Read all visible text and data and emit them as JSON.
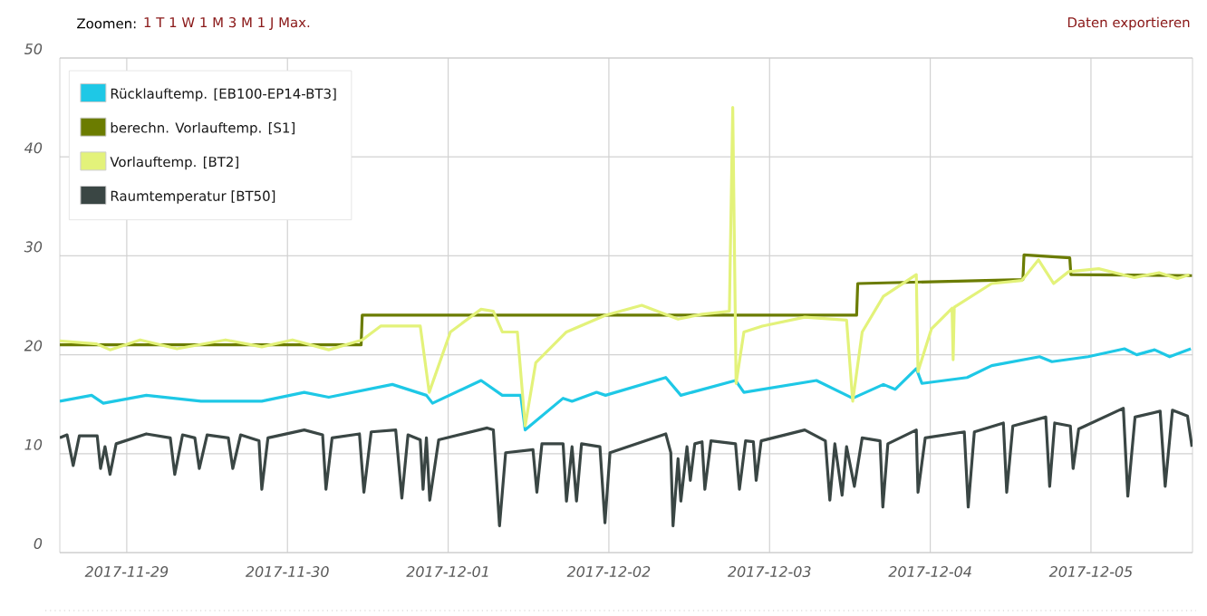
{
  "chart_data": {
    "type": "line",
    "annotations": [
      "Zoomen:",
      "1 T 1 W 1 M 3 M 1 J Max.",
      "Daten exportieren"
    ],
    "xlim": [
      "2017-11-28T14:00",
      "2017-12-05T15:10"
    ],
    "xticks": [
      "2017-11-29",
      "2017-11-30",
      "2017-12-01",
      "2017-12-02",
      "2017-12-03",
      "2017-12-04",
      "2017-12-05"
    ],
    "ylim": [
      0,
      50
    ],
    "yticks": [
      0,
      10,
      20,
      30,
      40,
      50
    ],
    "grid": true,
    "legend": "top left",
    "series": [
      {
        "name": "Rücklauftemp. [EB100-EP14-BT3]",
        "color": "#1ec8e6",
        "x": [
          "2017-11-28T14:00",
          "2017-11-28T18:45",
          "2017-11-28T20:30",
          "2017-11-29T02:55",
          "2017-11-29T11:05",
          "2017-11-29T20:10",
          "2017-11-30T02:30",
          "2017-11-30T06:10",
          "2017-11-30T15:40",
          "2017-11-30T20:45",
          "2017-11-30T21:40",
          "2017-12-01T04:55",
          "2017-12-01T08:05",
          "2017-12-01T10:50",
          "2017-12-01T11:30",
          "2017-12-01T17:10",
          "2017-12-01T18:30",
          "2017-12-01T22:10",
          "2017-12-01T23:30",
          "2017-12-02T08:30",
          "2017-12-02T10:45",
          "2017-12-02T18:55",
          "2017-12-02T20:10",
          "2017-12-03T07:00",
          "2017-12-03T12:25",
          "2017-12-03T17:00",
          "2017-12-03T18:45",
          "2017-12-03T21:55",
          "2017-12-03T22:45",
          "2017-12-04T05:30",
          "2017-12-04T09:10",
          "2017-12-04T16:20",
          "2017-12-04T18:10",
          "2017-12-04T23:35",
          "2017-12-05T05:00",
          "2017-12-05T06:50",
          "2017-12-05T09:30",
          "2017-12-05T11:45",
          "2017-12-05T14:55"
        ],
        "values": [
          15.3,
          15.9,
          15.1,
          15.9,
          15.3,
          15.3,
          16.2,
          15.7,
          17.0,
          15.9,
          15.1,
          17.4,
          15.9,
          15.9,
          12.4,
          15.6,
          15.3,
          16.2,
          15.9,
          17.7,
          15.9,
          17.4,
          16.2,
          17.4,
          15.6,
          17.0,
          16.5,
          18.6,
          17.1,
          17.7,
          18.9,
          19.8,
          19.3,
          19.8,
          20.6,
          20.0,
          20.5,
          19.8,
          20.6
        ]
      },
      {
        "name": "berechn. Vorlauftemp. [S1]",
        "color": "#6b7c00",
        "x": [
          "2017-11-28T14:00",
          "2017-11-30T11:00",
          "2017-11-30T11:10",
          "2017-12-03T13:00",
          "2017-12-03T13:10",
          "2017-12-04T13:50",
          "2017-12-04T14:00",
          "2017-12-04T20:50",
          "2017-12-04T21:00",
          "2017-12-05T15:05"
        ],
        "values": [
          21.0,
          21.0,
          24.0,
          24.0,
          27.2,
          27.6,
          30.1,
          29.8,
          28.1,
          28.0
        ]
      },
      {
        "name": "Vorlauftemp. [BT2]",
        "color": "#e3f27a",
        "x": [
          "2017-11-28T14:00",
          "2017-11-28T19:30",
          "2017-11-28T21:30",
          "2017-11-29T02:00",
          "2017-11-29T07:30",
          "2017-11-29T14:45",
          "2017-11-29T20:10",
          "2017-11-30T00:45",
          "2017-11-30T06:10",
          "2017-11-30T11:10",
          "2017-11-30T13:55",
          "2017-11-30T19:50",
          "2017-11-30T21:10",
          "2017-12-01T00:20",
          "2017-12-01T04:55",
          "2017-12-01T06:45",
          "2017-12-01T08:05",
          "2017-12-01T10:20",
          "2017-12-01T11:30",
          "2017-12-01T13:05",
          "2017-12-01T17:40",
          "2017-12-01T23:30",
          "2017-12-02T04:55",
          "2017-12-02T10:20",
          "2017-12-02T13:55",
          "2017-12-02T18:00",
          "2017-12-02T18:30",
          "2017-12-02T19:00",
          "2017-12-02T20:10",
          "2017-12-02T22:55",
          "2017-12-03T05:15",
          "2017-12-03T11:30",
          "2017-12-03T12:25",
          "2017-12-03T13:50",
          "2017-12-03T17:00",
          "2017-12-03T21:55",
          "2017-12-03T22:10",
          "2017-12-04T00:10",
          "2017-12-04T03:15",
          "2017-12-04T03:25",
          "2017-12-04T03:35",
          "2017-12-04T09:10",
          "2017-12-04T13:40",
          "2017-12-04T16:10",
          "2017-12-04T18:25",
          "2017-12-04T20:40",
          "2017-12-05T01:10",
          "2017-12-05T06:30",
          "2017-12-05T10:10",
          "2017-12-05T12:55",
          "2017-12-05T14:40"
        ],
        "values": [
          21.4,
          21.1,
          20.5,
          21.5,
          20.6,
          21.5,
          20.8,
          21.5,
          20.5,
          21.5,
          22.9,
          22.9,
          16.2,
          22.3,
          24.6,
          24.4,
          22.3,
          22.3,
          12.8,
          19.2,
          22.3,
          24.0,
          25.0,
          23.6,
          24.1,
          24.4,
          45.0,
          17.1,
          22.3,
          22.9,
          23.8,
          23.5,
          15.3,
          22.3,
          25.9,
          28.1,
          18.3,
          22.6,
          24.7,
          19.5,
          24.8,
          27.2,
          27.5,
          29.6,
          27.2,
          28.4,
          28.7,
          27.8,
          28.3,
          27.7,
          28.1
        ]
      },
      {
        "name": "Raumtemperatur [BT50]",
        "color": "#3a4644",
        "x": [
          "2017-11-28T14:00",
          "2017-11-28T15:05",
          "2017-11-28T16:00",
          "2017-11-28T16:55",
          "2017-11-28T19:35",
          "2017-11-28T20:05",
          "2017-11-28T20:45",
          "2017-11-28T21:30",
          "2017-11-28T22:25",
          "2017-11-29T02:55",
          "2017-11-29T06:30",
          "2017-11-29T07:10",
          "2017-11-29T08:20",
          "2017-11-29T10:10",
          "2017-11-29T10:50",
          "2017-11-29T12:00",
          "2017-11-29T15:10",
          "2017-11-29T15:50",
          "2017-11-29T17:00",
          "2017-11-29T19:45",
          "2017-11-29T20:10",
          "2017-11-29T21:05",
          "2017-11-30T02:30",
          "2017-11-30T05:15",
          "2017-11-30T05:45",
          "2017-11-30T06:40",
          "2017-11-30T10:45",
          "2017-11-30T11:25",
          "2017-11-30T12:30",
          "2017-11-30T16:10",
          "2017-11-30T17:05",
          "2017-11-30T18:00",
          "2017-11-30T19:50",
          "2017-11-30T20:15",
          "2017-11-30T20:45",
          "2017-11-30T21:15",
          "2017-11-30T22:35",
          "2017-12-01T05:50",
          "2017-12-01T06:45",
          "2017-12-01T07:40",
          "2017-12-01T08:35",
          "2017-12-01T12:40",
          "2017-12-01T13:15",
          "2017-12-01T14:00",
          "2017-12-01T17:10",
          "2017-12-01T17:40",
          "2017-12-01T18:30",
          "2017-12-01T19:10",
          "2017-12-01T19:55",
          "2017-12-01T22:40",
          "2017-12-01T23:25",
          "2017-12-02T00:10",
          "2017-12-02T08:30",
          "2017-12-02T09:15",
          "2017-12-02T09:35",
          "2017-12-02T10:20",
          "2017-12-02T10:45",
          "2017-12-02T11:40",
          "2017-12-02T12:10",
          "2017-12-02T12:50",
          "2017-12-02T13:55",
          "2017-12-02T14:20",
          "2017-12-02T15:15",
          "2017-12-02T18:55",
          "2017-12-02T19:30",
          "2017-12-02T20:25",
          "2017-12-02T21:35",
          "2017-12-02T22:00",
          "2017-12-02T22:45",
          "2017-12-03T05:15",
          "2017-12-03T08:20",
          "2017-12-03T09:00",
          "2017-12-03T09:45",
          "2017-12-03T10:50",
          "2017-12-03T11:30",
          "2017-12-03T12:40",
          "2017-12-03T13:50",
          "2017-12-03T16:30",
          "2017-12-03T16:55",
          "2017-12-03T17:40",
          "2017-12-03T21:55",
          "2017-12-03T22:10",
          "2017-12-03T23:15",
          "2017-12-04T05:05",
          "2017-12-04T05:40",
          "2017-12-04T06:35",
          "2017-12-04T10:55",
          "2017-12-04T11:25",
          "2017-12-04T12:20",
          "2017-12-04T17:15",
          "2017-12-04T17:50",
          "2017-12-04T18:35",
          "2017-12-04T20:55",
          "2017-12-04T21:20",
          "2017-12-04T22:10",
          "2017-12-05T04:50",
          "2017-12-05T05:30",
          "2017-12-05T06:35",
          "2017-12-05T10:20",
          "2017-12-05T11:05",
          "2017-12-05T12:10",
          "2017-12-05T14:25",
          "2017-12-05T15:05"
        ],
        "values": [
          11.6,
          11.9,
          8.8,
          11.8,
          11.8,
          8.5,
          10.7,
          7.9,
          11.0,
          12.0,
          11.6,
          7.9,
          11.9,
          11.6,
          8.5,
          11.9,
          11.6,
          8.5,
          11.9,
          11.3,
          6.4,
          11.6,
          12.4,
          11.9,
          6.4,
          11.6,
          12.0,
          6.1,
          12.2,
          12.4,
          5.5,
          11.9,
          11.4,
          6.4,
          11.6,
          5.3,
          11.4,
          12.6,
          12.4,
          2.7,
          10.1,
          10.4,
          6.1,
          11.0,
          11.0,
          5.2,
          10.7,
          5.2,
          11.0,
          10.7,
          3.0,
          10.1,
          12.0,
          10.1,
          2.7,
          9.5,
          5.2,
          10.7,
          7.3,
          11.0,
          11.2,
          6.4,
          11.3,
          11.0,
          6.4,
          11.3,
          11.2,
          7.3,
          11.3,
          12.4,
          11.3,
          5.3,
          11.0,
          5.8,
          10.7,
          6.7,
          11.6,
          11.3,
          4.6,
          11.0,
          12.4,
          6.1,
          11.6,
          12.2,
          4.6,
          12.2,
          13.1,
          6.1,
          12.8,
          13.7,
          6.7,
          13.1,
          12.8,
          8.5,
          12.5,
          14.6,
          5.7,
          13.7,
          14.3,
          6.7,
          14.4,
          13.8,
          10.7
        ]
      }
    ]
  }
}
